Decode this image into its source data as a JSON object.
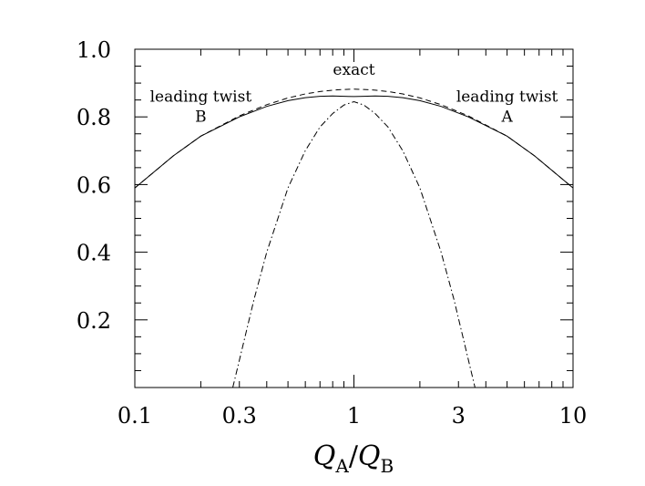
{
  "chart_data": {
    "type": "line",
    "x_scale": "log",
    "xlim": [
      0.1,
      10
    ],
    "ylim": [
      0.0,
      1.0
    ],
    "grid": false,
    "xlabel": {
      "base1": "Q",
      "sub1": "A",
      "slash": "/",
      "base2": "Q",
      "sub2": "B"
    },
    "x_ticks": [
      {
        "value": 0.1,
        "label": "0.1"
      },
      {
        "value": 0.3,
        "label": "0.3"
      },
      {
        "value": 1,
        "label": "1"
      },
      {
        "value": 3,
        "label": "3"
      },
      {
        "value": 10,
        "label": "10"
      }
    ],
    "y_ticks": [
      {
        "value": 0.2,
        "label": "0.2"
      },
      {
        "value": 0.4,
        "label": "0.4"
      },
      {
        "value": 0.6,
        "label": "0.6"
      },
      {
        "value": 0.8,
        "label": "0.8"
      },
      {
        "value": 1.0,
        "label": "1.0"
      }
    ],
    "annotations": [
      {
        "id": "exact",
        "lines": [
          "exact"
        ],
        "x": 1.0,
        "y": 0.925
      },
      {
        "id": "leading-twist-b",
        "lines": [
          "leading twist",
          "B"
        ],
        "x": 0.2,
        "y": 0.845
      },
      {
        "id": "leading-twist-a",
        "lines": [
          "leading twist",
          "A"
        ],
        "x": 5.0,
        "y": 0.845
      }
    ],
    "series": [
      {
        "id": "exact",
        "style": "dashed",
        "x": [
          0.1,
          0.15,
          0.2,
          0.3,
          0.4,
          0.5,
          0.6,
          0.7,
          0.8,
          0.9,
          1.0,
          1.11,
          1.25,
          1.43,
          1.67,
          2.0,
          2.5,
          3.33,
          5.0,
          6.67,
          10
        ],
        "y": [
          0.59,
          0.685,
          0.743,
          0.803,
          0.836,
          0.856,
          0.868,
          0.875,
          0.879,
          0.881,
          0.882,
          0.881,
          0.879,
          0.875,
          0.868,
          0.856,
          0.836,
          0.803,
          0.743,
          0.685,
          0.59
        ]
      },
      {
        "id": "leading-twist-b",
        "style": "solid",
        "x": [
          0.1,
          0.15,
          0.2,
          0.3,
          0.4,
          0.5,
          0.6,
          0.7,
          0.8,
          0.9,
          1.0
        ],
        "y": [
          0.59,
          0.685,
          0.743,
          0.8,
          0.831,
          0.848,
          0.857,
          0.861,
          0.862,
          0.861,
          0.86
        ]
      },
      {
        "id": "leading-twist-a",
        "style": "solid",
        "x": [
          1.0,
          1.11,
          1.25,
          1.43,
          1.67,
          2.0,
          2.5,
          3.33,
          5.0,
          6.67,
          10
        ],
        "y": [
          0.86,
          0.861,
          0.862,
          0.861,
          0.857,
          0.848,
          0.831,
          0.8,
          0.743,
          0.685,
          0.59
        ]
      },
      {
        "id": "dash-dot",
        "style": "dashdot",
        "x": [
          0.28,
          0.3,
          0.35,
          0.4,
          0.5,
          0.6,
          0.7,
          0.8,
          0.9,
          1.0,
          1.11,
          1.25,
          1.43,
          1.67,
          2.0,
          2.5,
          2.86,
          3.57
        ],
        "y": [
          0.0,
          0.08,
          0.26,
          0.4,
          0.59,
          0.7,
          0.77,
          0.81,
          0.835,
          0.845,
          0.835,
          0.81,
          0.77,
          0.7,
          0.59,
          0.4,
          0.26,
          0.0
        ]
      }
    ]
  }
}
